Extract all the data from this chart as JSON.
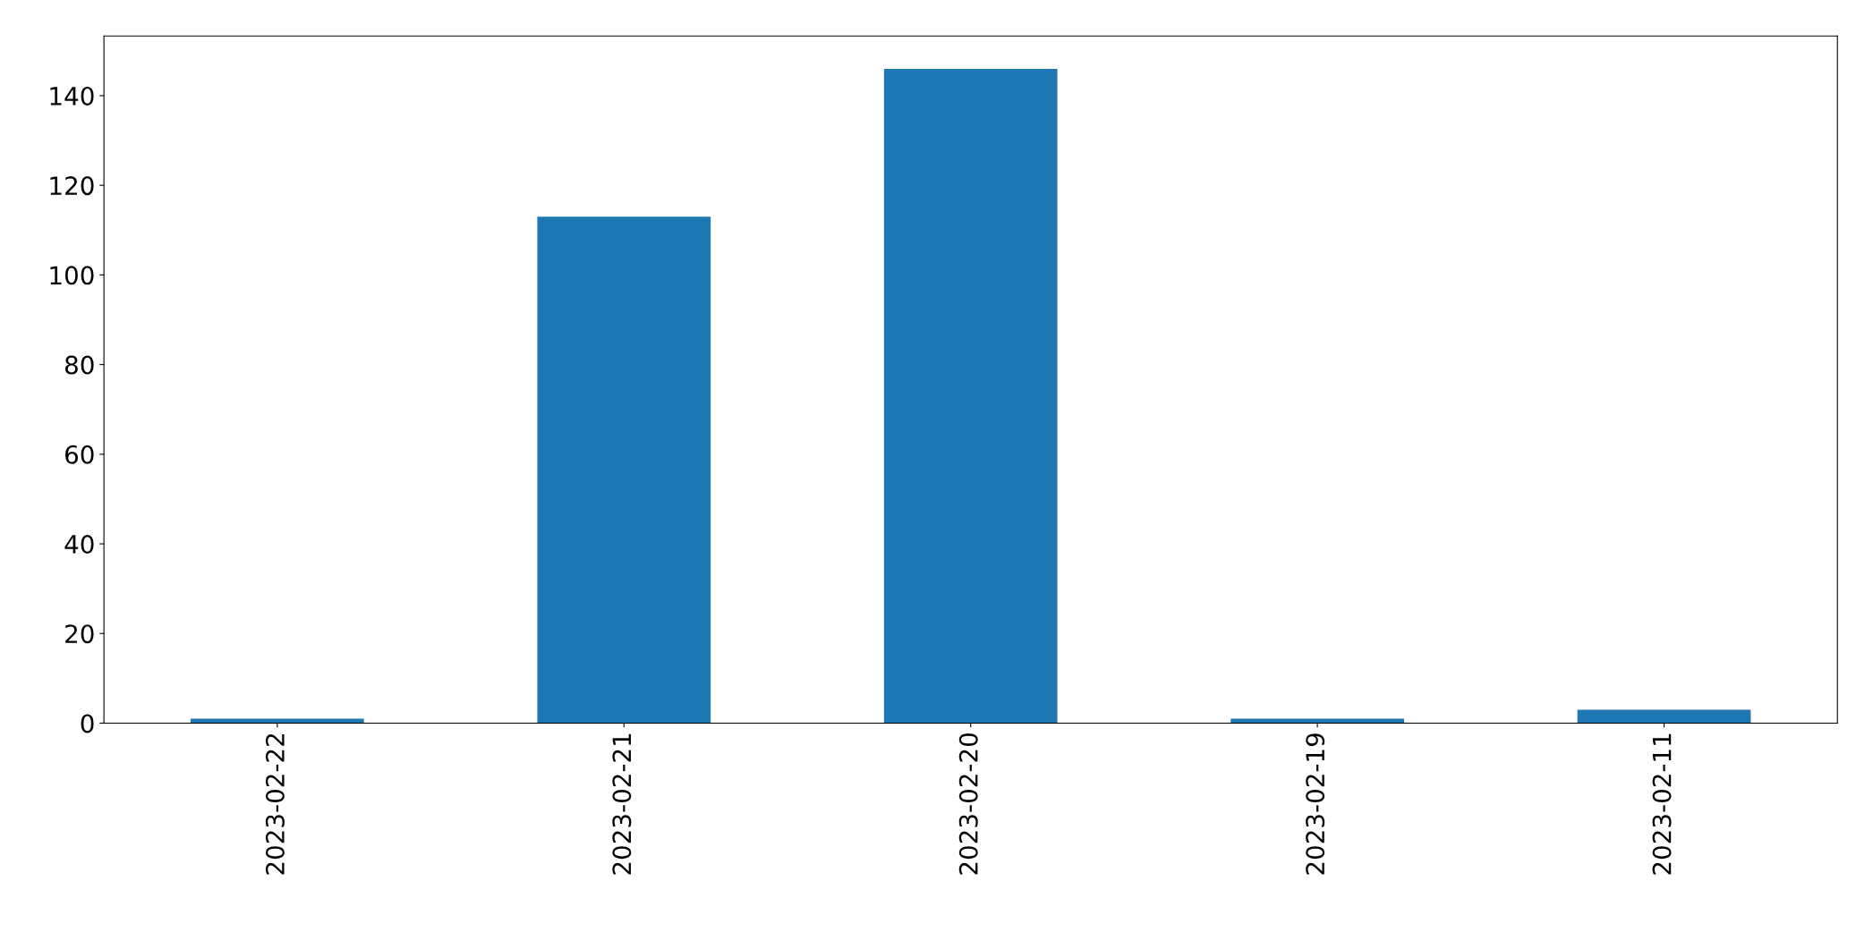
{
  "chart_data": {
    "type": "bar",
    "categories": [
      "2023-02-22",
      "2023-02-21",
      "2023-02-20",
      "2023-02-19",
      "2023-02-11"
    ],
    "values": [
      1,
      113,
      146,
      1,
      3
    ],
    "color": "#1f77b4",
    "ylim": [
      0,
      153.3
    ],
    "yticks": [
      0,
      20,
      40,
      60,
      80,
      100,
      120,
      140
    ],
    "grid": false,
    "legend": false
  }
}
